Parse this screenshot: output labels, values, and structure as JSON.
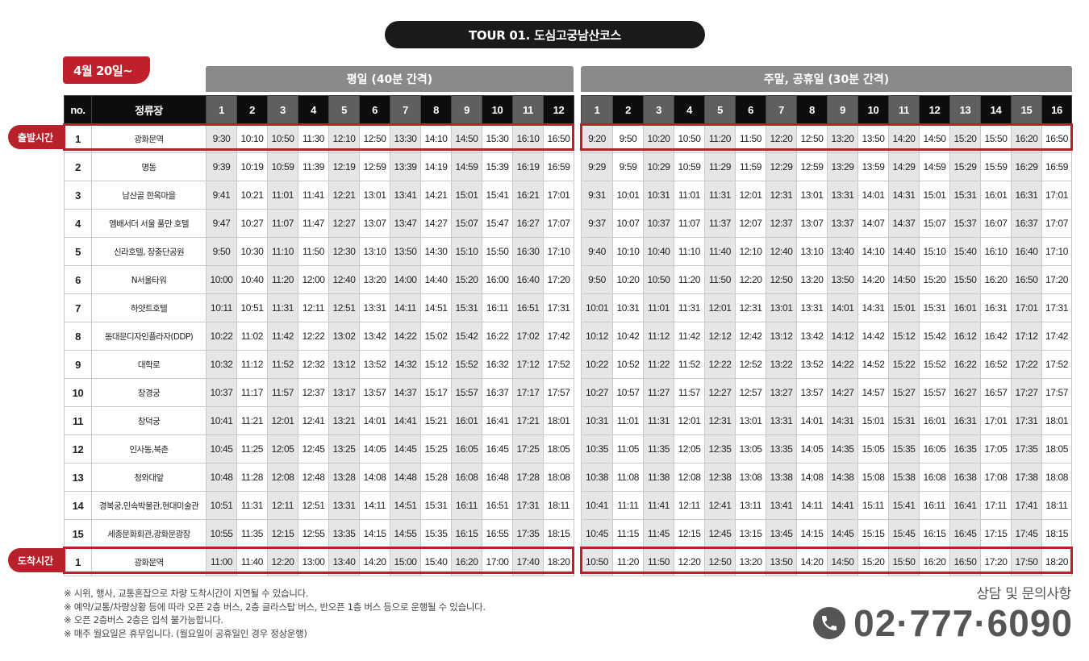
{
  "title": "TOUR 01. 도심고궁남산코스",
  "date_label": "4월 20일~",
  "weekday_header": "평일 (40분 간격)",
  "weekend_header": "주말, 공휴일 (30분 간격)",
  "col_no": "no.",
  "col_stop": "정류장",
  "weekday_runs": [
    "1",
    "2",
    "3",
    "4",
    "5",
    "6",
    "7",
    "8",
    "9",
    "10",
    "11",
    "12"
  ],
  "weekend_runs": [
    "1",
    "2",
    "3",
    "4",
    "5",
    "6",
    "7",
    "8",
    "9",
    "10",
    "11",
    "12",
    "13",
    "14",
    "15",
    "16"
  ],
  "departure_label": "출발시간",
  "arrival_label": "도착시간",
  "stops": [
    {
      "no": "1",
      "name": "광화문역",
      "weekday": [
        "9:30",
        "10:10",
        "10:50",
        "11:30",
        "12:10",
        "12:50",
        "13:30",
        "14:10",
        "14:50",
        "15:30",
        "16:10",
        "16:50"
      ],
      "weekend": [
        "9:20",
        "9:50",
        "10:20",
        "10:50",
        "11:20",
        "11:50",
        "12:20",
        "12:50",
        "13:20",
        "13:50",
        "14:20",
        "14:50",
        "15:20",
        "15:50",
        "16:20",
        "16:50"
      ]
    },
    {
      "no": "2",
      "name": "명동",
      "weekday": [
        "9:39",
        "10:19",
        "10:59",
        "11:39",
        "12:19",
        "12:59",
        "13:39",
        "14:19",
        "14:59",
        "15:39",
        "16:19",
        "16:59"
      ],
      "weekend": [
        "9:29",
        "9:59",
        "10:29",
        "10:59",
        "11:29",
        "11:59",
        "12:29",
        "12:59",
        "13:29",
        "13:59",
        "14:29",
        "14:59",
        "15:29",
        "15:59",
        "16:29",
        "16:59"
      ]
    },
    {
      "no": "3",
      "name": "남산골 한옥마을",
      "weekday": [
        "9:41",
        "10:21",
        "11:01",
        "11:41",
        "12:21",
        "13:01",
        "13:41",
        "14:21",
        "15:01",
        "15:41",
        "16:21",
        "17:01"
      ],
      "weekend": [
        "9:31",
        "10:01",
        "10:31",
        "11:01",
        "11:31",
        "12:01",
        "12:31",
        "13:01",
        "13:31",
        "14:01",
        "14:31",
        "15:01",
        "15:31",
        "16:01",
        "16:31",
        "17:01"
      ]
    },
    {
      "no": "4",
      "name": "엠배서더 서울 풀만 호텔",
      "weekday": [
        "9:47",
        "10:27",
        "11:07",
        "11:47",
        "12:27",
        "13:07",
        "13:47",
        "14:27",
        "15:07",
        "15:47",
        "16:27",
        "17:07"
      ],
      "weekend": [
        "9:37",
        "10:07",
        "10:37",
        "11:07",
        "11:37",
        "12:07",
        "12:37",
        "13:07",
        "13:37",
        "14:07",
        "14:37",
        "15:07",
        "15:37",
        "16:07",
        "16:37",
        "17:07"
      ]
    },
    {
      "no": "5",
      "name": "신라호텔, 장충단공원",
      "weekday": [
        "9:50",
        "10:30",
        "11:10",
        "11:50",
        "12:30",
        "13:10",
        "13:50",
        "14:30",
        "15:10",
        "15:50",
        "16:30",
        "17:10"
      ],
      "weekend": [
        "9:40",
        "10:10",
        "10:40",
        "11:10",
        "11:40",
        "12:10",
        "12:40",
        "13:10",
        "13:40",
        "14:10",
        "14:40",
        "15:10",
        "15:40",
        "16:10",
        "16:40",
        "17:10"
      ]
    },
    {
      "no": "6",
      "name": "N서울타워",
      "weekday": [
        "10:00",
        "10:40",
        "11:20",
        "12:00",
        "12:40",
        "13:20",
        "14:00",
        "14:40",
        "15:20",
        "16:00",
        "16:40",
        "17:20"
      ],
      "weekend": [
        "9:50",
        "10:20",
        "10:50",
        "11:20",
        "11:50",
        "12:20",
        "12:50",
        "13:20",
        "13:50",
        "14:20",
        "14:50",
        "15:20",
        "15:50",
        "16:20",
        "16:50",
        "17:20"
      ]
    },
    {
      "no": "7",
      "name": "하얏트호텔",
      "weekday": [
        "10:11",
        "10:51",
        "11:31",
        "12:11",
        "12:51",
        "13:31",
        "14:11",
        "14:51",
        "15:31",
        "16:11",
        "16:51",
        "17:31"
      ],
      "weekend": [
        "10:01",
        "10:31",
        "11:01",
        "11:31",
        "12:01",
        "12:31",
        "13:01",
        "13:31",
        "14:01",
        "14:31",
        "15:01",
        "15:31",
        "16:01",
        "16:31",
        "17:01",
        "17:31"
      ]
    },
    {
      "no": "8",
      "name": "동대문디자인플라자(DDP)",
      "weekday": [
        "10:22",
        "11:02",
        "11:42",
        "12:22",
        "13:02",
        "13:42",
        "14:22",
        "15:02",
        "15:42",
        "16:22",
        "17:02",
        "17:42"
      ],
      "weekend": [
        "10:12",
        "10:42",
        "11:12",
        "11:42",
        "12:12",
        "12:42",
        "13:12",
        "13:42",
        "14:12",
        "14:42",
        "15:12",
        "15:42",
        "16:12",
        "16:42",
        "17:12",
        "17:42"
      ]
    },
    {
      "no": "9",
      "name": "대학로",
      "weekday": [
        "10:32",
        "11:12",
        "11:52",
        "12:32",
        "13:12",
        "13:52",
        "14:32",
        "15:12",
        "15:52",
        "16:32",
        "17:12",
        "17:52"
      ],
      "weekend": [
        "10:22",
        "10:52",
        "11:22",
        "11:52",
        "12:22",
        "12:52",
        "13:22",
        "13:52",
        "14:22",
        "14:52",
        "15:22",
        "15:52",
        "16:22",
        "16:52",
        "17:22",
        "17:52"
      ]
    },
    {
      "no": "10",
      "name": "창경궁",
      "weekday": [
        "10:37",
        "11:17",
        "11:57",
        "12:37",
        "13:17",
        "13:57",
        "14:37",
        "15:17",
        "15:57",
        "16:37",
        "17:17",
        "17:57"
      ],
      "weekend": [
        "10:27",
        "10:57",
        "11:27",
        "11:57",
        "12:27",
        "12:57",
        "13:27",
        "13:57",
        "14:27",
        "14:57",
        "15:27",
        "15:57",
        "16:27",
        "16:57",
        "17:27",
        "17:57"
      ]
    },
    {
      "no": "11",
      "name": "창덕궁",
      "weekday": [
        "10:41",
        "11:21",
        "12:01",
        "12:41",
        "13:21",
        "14:01",
        "14:41",
        "15:21",
        "16:01",
        "16:41",
        "17:21",
        "18:01"
      ],
      "weekend": [
        "10:31",
        "11:01",
        "11:31",
        "12:01",
        "12:31",
        "13:01",
        "13:31",
        "14:01",
        "14:31",
        "15:01",
        "15:31",
        "16:01",
        "16:31",
        "17:01",
        "17:31",
        "18:01"
      ]
    },
    {
      "no": "12",
      "name": "인사동,북촌",
      "weekday": [
        "10:45",
        "11:25",
        "12:05",
        "12:45",
        "13:25",
        "14:05",
        "14:45",
        "15:25",
        "16:05",
        "16:45",
        "17:25",
        "18:05"
      ],
      "weekend": [
        "10:35",
        "11:05",
        "11:35",
        "12:05",
        "12:35",
        "13:05",
        "13:35",
        "14:05",
        "14:35",
        "15:05",
        "15:35",
        "16:05",
        "16:35",
        "17:05",
        "17:35",
        "18:05"
      ]
    },
    {
      "no": "13",
      "name": "청와대앞",
      "weekday": [
        "10:48",
        "11:28",
        "12:08",
        "12:48",
        "13:28",
        "14:08",
        "14:48",
        "15:28",
        "16:08",
        "16:48",
        "17:28",
        "18:08"
      ],
      "weekend": [
        "10:38",
        "11:08",
        "11:38",
        "12:08",
        "12:38",
        "13:08",
        "13:38",
        "14:08",
        "14:38",
        "15:08",
        "15:38",
        "16:08",
        "16:38",
        "17:08",
        "17:38",
        "18:08"
      ]
    },
    {
      "no": "14",
      "name": "경복궁,민속박물관,현대미술관",
      "weekday": [
        "10:51",
        "11:31",
        "12:11",
        "12:51",
        "13:31",
        "14:11",
        "14:51",
        "15:31",
        "16:11",
        "16:51",
        "17:31",
        "18:11"
      ],
      "weekend": [
        "10:41",
        "11:11",
        "11:41",
        "12:11",
        "12:41",
        "13:11",
        "13:41",
        "14:11",
        "14:41",
        "15:11",
        "15:41",
        "16:11",
        "16:41",
        "17:11",
        "17:41",
        "18:11"
      ]
    },
    {
      "no": "15",
      "name": "세종문화회관,광화문광장",
      "weekday": [
        "10:55",
        "11:35",
        "12:15",
        "12:55",
        "13:35",
        "14:15",
        "14:55",
        "15:35",
        "16:15",
        "16:55",
        "17:35",
        "18:15"
      ],
      "weekend": [
        "10:45",
        "11:15",
        "11:45",
        "12:15",
        "12:45",
        "13:15",
        "13:45",
        "14:15",
        "14:45",
        "15:15",
        "15:45",
        "16:15",
        "16:45",
        "17:15",
        "17:45",
        "18:15"
      ]
    },
    {
      "no": "1",
      "name": "광화문역",
      "weekday": [
        "11:00",
        "11:40",
        "12:20",
        "13:00",
        "13:40",
        "14:20",
        "15:00",
        "15:40",
        "16:20",
        "17:00",
        "17:40",
        "18:20"
      ],
      "weekend": [
        "10:50",
        "11:20",
        "11:50",
        "12:20",
        "12:50",
        "13:20",
        "13:50",
        "14:20",
        "14:50",
        "15:20",
        "15:50",
        "16:20",
        "16:50",
        "17:20",
        "17:50",
        "18:20"
      ]
    }
  ],
  "notes": [
    "※ 시위, 행사, 교통혼잡으로 차량 도착시간이 지연될 수 있습니다.",
    "※ 예약/교통/차량상황 등에 따라 오픈 2층 버스, 2층 글라스탑 버스, 반오픈 1층 버스 등으로 운행될 수 있습니다.",
    "※ 오픈 2층버스 2층은 입석 불가능합니다.",
    "※ 매주 월요일은 휴무입니다. (월요일이 공휴일인 경우 정상운행)"
  ],
  "contact_label": "상담 및 문의사항",
  "phone": "02·777·6090",
  "colors": {
    "accent": "#b8202a",
    "header": "#0d0d0d",
    "shade": "#e6e6e6",
    "section": "#8a8a8a"
  }
}
